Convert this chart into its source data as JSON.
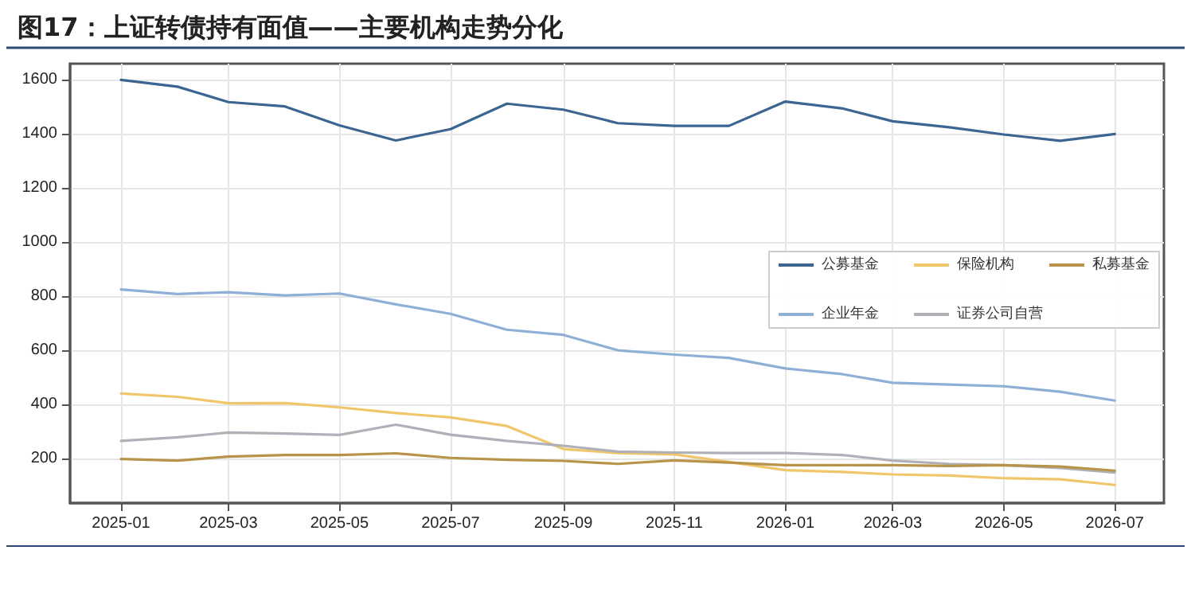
{
  "chart_data": {
    "type": "line",
    "title": "图17：上证转债持有面值——主要机构走势分化",
    "x": [
      "2025-01",
      "2025-02",
      "2025-03",
      "2025-04",
      "2025-05",
      "2025-06",
      "2025-07",
      "2025-08",
      "2025-09",
      "2025-10",
      "2025-11",
      "2025-12",
      "2026-01",
      "2026-02",
      "2026-03",
      "2026-04",
      "2026-05",
      "2026-06",
      "2026-07"
    ],
    "series": [
      {
        "name": "公募基金",
        "color": "#3c6591",
        "values": [
          1600,
          1575,
          1518,
          1502,
          1432,
          1376,
          1418,
          1512,
          1490,
          1440,
          1430,
          1430,
          1520,
          1495,
          1447,
          1425,
          1398,
          1375,
          1400
        ]
      },
      {
        "name": "企业年金",
        "color": "#8fb0d6",
        "values": [
          825,
          808,
          815,
          803,
          810,
          770,
          735,
          676,
          657,
          600,
          584,
          572,
          533,
          512,
          480,
          473,
          467,
          447,
          414
        ]
      },
      {
        "name": "保险机构",
        "color": "#f0c66a",
        "values": [
          440,
          428,
          404,
          405,
          389,
          368,
          352,
          320,
          235,
          220,
          215,
          187,
          157,
          150,
          141,
          137,
          127,
          123,
          102
        ]
      },
      {
        "name": "证券公司自营",
        "color": "#b0b0b8",
        "values": [
          265,
          278,
          296,
          292,
          287,
          325,
          288,
          265,
          247,
          225,
          222,
          220,
          220,
          213,
          192,
          180,
          175,
          165,
          148
        ]
      },
      {
        "name": "私募基金",
        "color": "#b8944a",
        "values": [
          198,
          192,
          207,
          213,
          213,
          219,
          202,
          195,
          191,
          180,
          193,
          185,
          175,
          175,
          175,
          172,
          175,
          170,
          155
        ]
      }
    ],
    "xlim": [
      "2024-12-04",
      "2026-07-28"
    ],
    "xticks": [
      "2025-01",
      "2025-03",
      "2025-05",
      "2025-07",
      "2025-09",
      "2025-11",
      "2026-01",
      "2026-03",
      "2026-05",
      "2026-07"
    ],
    "ylim": [
      35,
      1660
    ],
    "yticks": [
      200,
      400,
      600,
      800,
      1000,
      1200,
      1400,
      1600
    ],
    "grid": true,
    "legend": "right",
    "marker": "none",
    "line_style": "solid"
  }
}
